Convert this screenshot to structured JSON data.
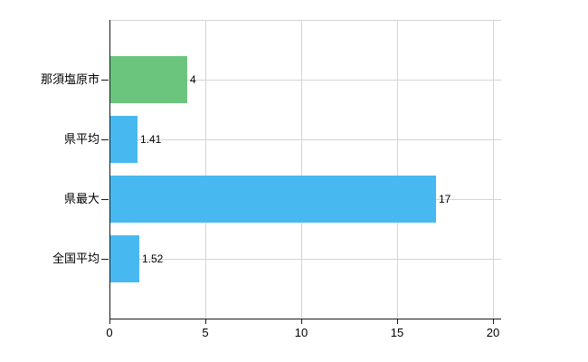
{
  "chart_data": {
    "type": "bar",
    "orientation": "horizontal",
    "title": "",
    "xlabel": "",
    "ylabel": "",
    "categories": [
      "那須塩原市",
      "県平均",
      "県最大",
      "全国平均"
    ],
    "values": [
      4,
      1.41,
      17,
      1.52
    ],
    "value_labels": [
      "4",
      "1.41",
      "17",
      "1.52"
    ],
    "series": [
      {
        "name": "value",
        "values": [
          4,
          1.41,
          17,
          1.52
        ],
        "bar_colors": [
          "#6cc57c",
          "#47b9f0",
          "#47b9f0",
          "#47b9f0"
        ]
      }
    ],
    "xlim": [
      0,
      20
    ],
    "x_ticks": [
      0,
      5,
      10,
      15,
      20
    ],
    "x_tick_labels": [
      "0",
      "5",
      "10",
      "15",
      "20"
    ],
    "grid": true,
    "legend": false,
    "colors": {
      "bar_green": "#6cc57c",
      "bar_blue": "#47b9f0",
      "grid": "#d4d4d4",
      "axis": "#1a1a1a",
      "text": "#000000",
      "background": "#ffffff"
    }
  }
}
